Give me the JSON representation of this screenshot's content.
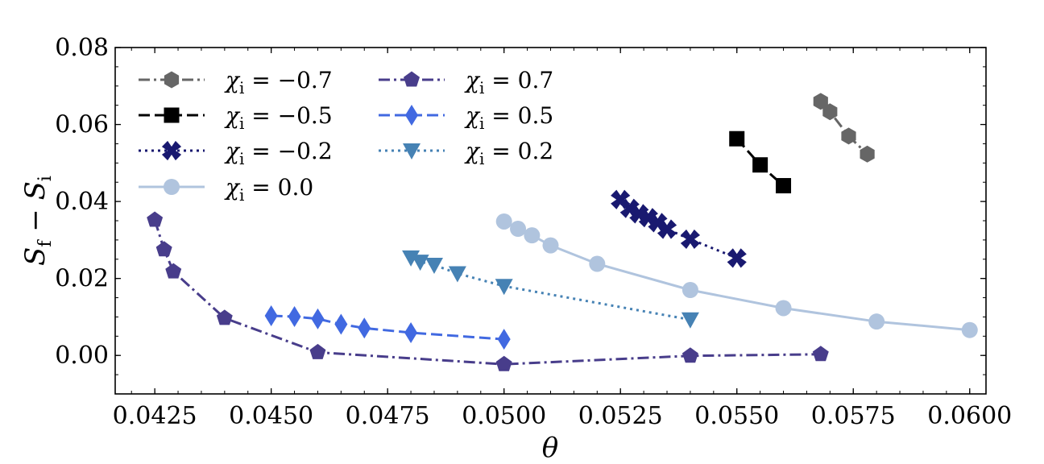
{
  "chart_data": {
    "type": "line",
    "title": "",
    "xlabel": "θ",
    "ylabel": "S_f − S_i",
    "ylabel_parts": {
      "s1": "S",
      "sub1": "f",
      "minus": " − ",
      "s2": "S",
      "sub2": "i"
    },
    "xlim": [
      0.04165,
      0.06035
    ],
    "ylim": [
      -0.01,
      0.08
    ],
    "xticks": [
      {
        "value": 0.0425,
        "label": "0.0425"
      },
      {
        "value": 0.045,
        "label": "0.0450"
      },
      {
        "value": 0.0475,
        "label": "0.0475"
      },
      {
        "value": 0.05,
        "label": "0.0500"
      },
      {
        "value": 0.0525,
        "label": "0.0525"
      },
      {
        "value": 0.055,
        "label": "0.0550"
      },
      {
        "value": 0.0575,
        "label": "0.0575"
      },
      {
        "value": 0.06,
        "label": "0.0600"
      }
    ],
    "yticks": [
      {
        "value": 0.0,
        "label": "0.00"
      },
      {
        "value": 0.02,
        "label": "0.02"
      },
      {
        "value": 0.04,
        "label": "0.04"
      },
      {
        "value": 0.06,
        "label": "0.06"
      },
      {
        "value": 0.08,
        "label": "0.08"
      }
    ],
    "legend_placement": "top-left, two columns",
    "series": [
      {
        "key": "m07",
        "name": "χi = −0.7",
        "chi": "−0.7",
        "color": "#666666",
        "marker": "hexagon",
        "dash": "dashdot",
        "x": [
          0.0568,
          0.057,
          0.0574,
          0.0578
        ],
        "y": [
          0.066,
          0.0633,
          0.057,
          0.0523
        ]
      },
      {
        "key": "m05",
        "name": "χi = −0.5",
        "chi": "−0.5",
        "color": "#000000",
        "marker": "square",
        "dash": "dashed",
        "x": [
          0.055,
          0.0555,
          0.056
        ],
        "y": [
          0.0563,
          0.0495,
          0.0441
        ]
      },
      {
        "key": "m02",
        "name": "χi = −0.2",
        "chi": "−0.2",
        "color": "#191970",
        "marker": "x",
        "dash": "dotted",
        "x": [
          0.0525,
          0.0527,
          0.0529,
          0.0531,
          0.0533,
          0.0535,
          0.054,
          0.055
        ],
        "y": [
          0.0405,
          0.0382,
          0.0368,
          0.0358,
          0.0345,
          0.0328,
          0.0302,
          0.0253
        ]
      },
      {
        "key": "p00",
        "name": "χi = 0.0",
        "chi": "0.0",
        "color": "#b0c4de",
        "marker": "circle",
        "dash": "solid",
        "x": [
          0.05,
          0.0503,
          0.0506,
          0.051,
          0.052,
          0.054,
          0.056,
          0.058,
          0.06
        ],
        "y": [
          0.0348,
          0.0329,
          0.0312,
          0.0286,
          0.0238,
          0.017,
          0.0123,
          0.0088,
          0.0066
        ]
      },
      {
        "key": "p07",
        "name": "χi = 0.7",
        "chi": "0.7",
        "color": "#483d8b",
        "marker": "pentagon",
        "dash": "dashdot",
        "x": [
          0.0425,
          0.0427,
          0.0429,
          0.044,
          0.046,
          0.05,
          0.054,
          0.0568
        ],
        "y": [
          0.0352,
          0.0275,
          0.0218,
          0.0097,
          0.0008,
          -0.0023,
          -0.0001,
          0.0003
        ]
      },
      {
        "key": "p05",
        "name": "χi = 0.5",
        "chi": "0.5",
        "color": "#4169e1",
        "marker": "diamond",
        "dash": "dashed",
        "x": [
          0.045,
          0.0455,
          0.046,
          0.0465,
          0.047,
          0.048,
          0.05
        ],
        "y": [
          0.0103,
          0.0101,
          0.0095,
          0.0081,
          0.0071,
          0.0059,
          0.0042
        ]
      },
      {
        "key": "p02",
        "name": "χi = 0.2",
        "chi": "0.2",
        "color": "#4682b4",
        "marker": "triangle-down",
        "dash": "dotted",
        "x": [
          0.048,
          0.0482,
          0.0485,
          0.049,
          0.05,
          0.054
        ],
        "y": [
          0.0254,
          0.0243,
          0.0235,
          0.0213,
          0.018,
          0.0093
        ]
      }
    ]
  },
  "legend": {
    "symbol": "χ",
    "subscript": "i",
    "equals": " = ",
    "column_order": [
      [
        "m07",
        "m05",
        "m02",
        "p00"
      ],
      [
        "p07",
        "p05",
        "p02"
      ]
    ]
  }
}
